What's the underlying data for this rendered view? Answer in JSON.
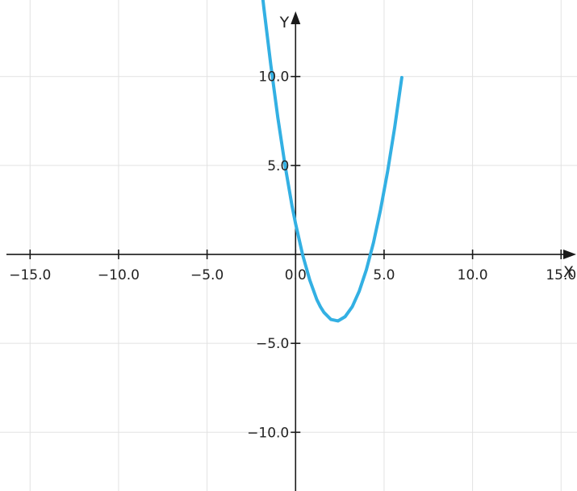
{
  "chart_data": {
    "type": "line",
    "x_axis": {
      "label": "X",
      "range": [
        -16.7,
        15.9
      ],
      "ticks": [
        -15,
        -10,
        -5,
        0,
        5,
        10,
        15
      ],
      "tick_labels": [
        "−15.0",
        "−10.0",
        "−5.0",
        "0.0",
        "5.0",
        "10.0",
        "15.0"
      ]
    },
    "y_axis": {
      "label": "Y",
      "range": [
        -13.3,
        14.3
      ],
      "ticks": [
        -10,
        -5,
        5,
        10
      ],
      "tick_labels": [
        "−10.0",
        "−5.0",
        "5.0",
        "10.0"
      ]
    },
    "grid": true,
    "series": [
      {
        "color": "#33b0e3",
        "x": [
          -2.2,
          -1.8,
          -1.4,
          -1.0,
          -0.6,
          -0.2,
          0.0,
          0.4,
          0.8,
          1.2,
          1.4,
          1.6,
          2.0,
          2.4,
          2.8,
          3.2,
          3.6,
          4.0,
          4.4,
          4.8,
          5.2,
          5.6,
          6.0
        ],
        "y": [
          17.52,
          13.92,
          10.64,
          7.68,
          5.04,
          2.72,
          1.72,
          -0.02,
          -1.44,
          -2.54,
          -2.94,
          -3.26,
          -3.66,
          -3.74,
          -3.5,
          -2.94,
          -2.06,
          -0.86,
          0.66,
          2.5,
          4.66,
          7.14,
          9.94
        ]
      }
    ]
  }
}
